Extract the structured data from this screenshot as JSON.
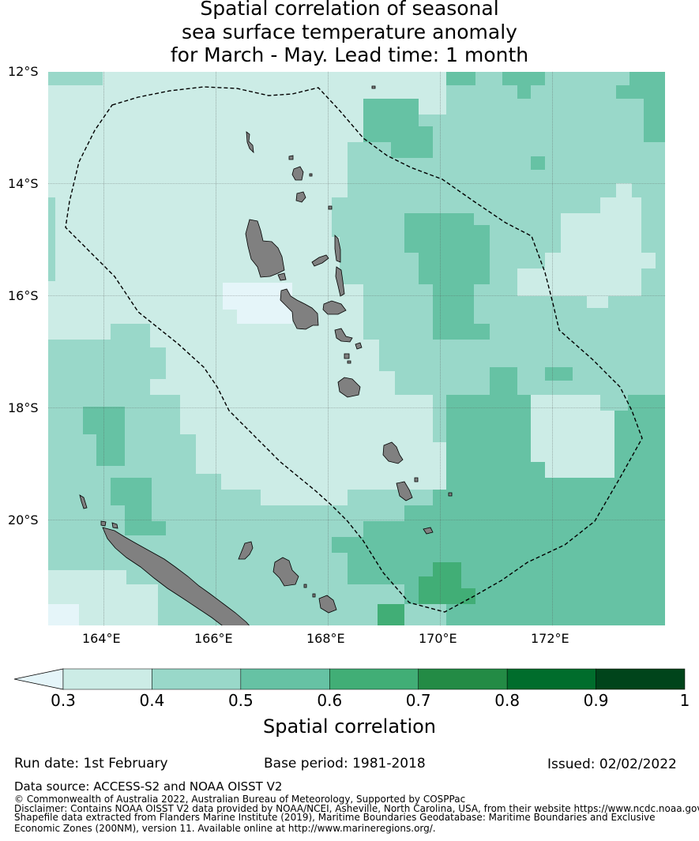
{
  "title_lines": [
    "Spatial correlation of seasonal",
    "sea surface temperature anomaly",
    "for March - May. Lead time: 1 month"
  ],
  "lat_labels": [
    "12°S",
    "14°S",
    "16°S",
    "18°S",
    "20°S"
  ],
  "lon_labels": [
    "164°E",
    "166°E",
    "168°E",
    "170°E",
    "172°E"
  ],
  "colorbar": {
    "label": "Spatial correlation",
    "ticks": [
      "0.3",
      "0.4",
      "0.5",
      "0.6",
      "0.7",
      "0.8",
      "0.9",
      "1"
    ],
    "colors": [
      "#e5f5f9",
      "#ccece6",
      "#99d8c9",
      "#66c2a4",
      "#41ae76",
      "#238b45",
      "#006d2c",
      "#00441b"
    ]
  },
  "footer": {
    "run_date": "Run date: 1st February",
    "base_period": "Base period: 1981-2018",
    "issued": "Issued: 02/02/2022",
    "data_source": "Data source: ACCESS-S2 and NOAA OISST V2",
    "copyright": "© Commonwealth of Australia 2022, Australian Bureau of Meteorology, Supported by COSPPac",
    "disclaimer_1": "Disclaimer: Contains NOAA OISST V2 data provided by NOAA/NCEI, Asheville, North Carolina, USA, from their website https://www.ncdc.noaa.gov",
    "disclaimer_2": "Shapefile data extracted from Flanders Marine Institute (2019), Maritime Boundaries Geodatabase: Maritime Boundaries and Exclusive",
    "disclaimer_3": "Economic Zones (200NM), version 11. Available online at http://www.marineregions.org/."
  }
}
